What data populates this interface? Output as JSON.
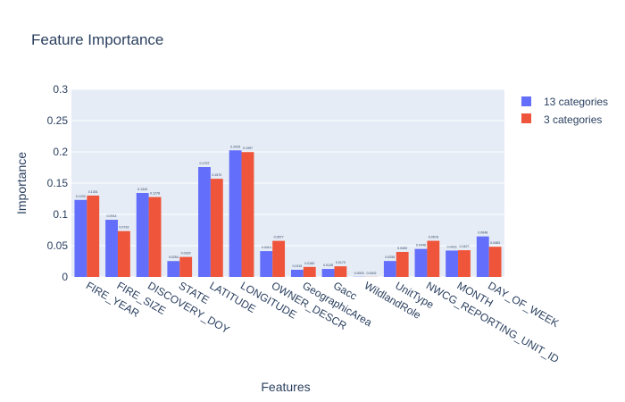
{
  "chart_data": {
    "type": "bar",
    "title": "Feature Importance",
    "xlabel": "Features",
    "ylabel": "Importance",
    "ylim": [
      0,
      0.3
    ],
    "yticks": [
      "0",
      "0.05",
      "0.1",
      "0.15",
      "0.2",
      "0.25",
      "0.3"
    ],
    "grid": true,
    "legend_position": "top-right",
    "categories": [
      "FIRE_YEAR",
      "FIRE_SIZE",
      "DISCOVERY_DOY",
      "STATE",
      "LATITUDE",
      "LONGITUDE",
      "OWNER_DESCR",
      "GeographicArea",
      "Gacc",
      "WildlandRole",
      "UnitType",
      "NWCG_REPORTING_UNIT_ID",
      "MONTH",
      "DAY_OF_WEEK"
    ],
    "series": [
      {
        "name": "13 categories",
        "color": "#636efa",
        "values": [
          0.1232,
          0.0914,
          0.1343,
          0.0254,
          0.1757,
          0.2025,
          0.0413,
          0.0115,
          0.0128,
          0.0003,
          0.0255,
          0.0448,
          0.0422,
          0.0648
        ],
        "labels": [
          "0.1232",
          "0.0914",
          "0.1343",
          "0.0254",
          "0.1757",
          "0.2025",
          "0.0413",
          "0.0115",
          "0.0128",
          "0.0003",
          "0.0255",
          "0.0448",
          "0.0422",
          "0.0648"
        ]
      },
      {
        "name": "3 categories",
        "color": "#ef553b",
        "values": [
          0.1301,
          0.0733,
          0.1278,
          0.032,
          0.157,
          0.1997,
          0.0577,
          0.016,
          0.017,
          0.0002,
          0.04,
          0.0578,
          0.0427,
          0.0483
        ],
        "labels": [
          "0.1301",
          "0.0733",
          "0.1278",
          "0.0320",
          "0.1570",
          "0.1997",
          "0.0577",
          "0.0160",
          "0.0170",
          "0.0002",
          "0.0400",
          "0.0578",
          "0.0427",
          "0.0483"
        ]
      }
    ]
  }
}
